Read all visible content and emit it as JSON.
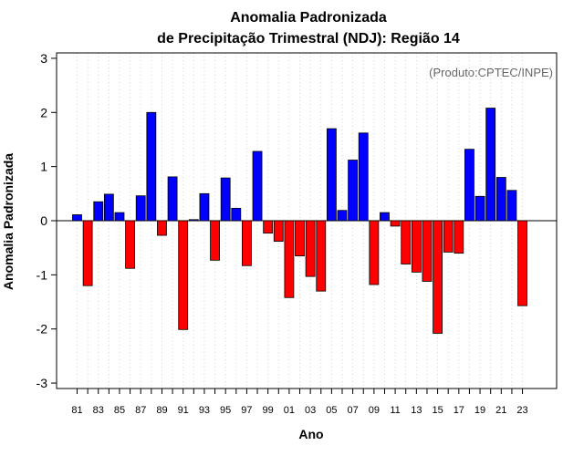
{
  "chart_data": {
    "type": "bar",
    "title": "Anomalia Padronizada",
    "subtitle": "de Precipitação Trimestral (NDJ): Região 14",
    "xlabel": "Ano",
    "ylabel": "Anomalia Padronizada",
    "credit": "(Produto:CPTEC/INPE)",
    "ylim": [
      -3.1,
      3.1
    ],
    "yticks": [
      -3,
      -2,
      -1,
      0,
      1,
      2,
      3
    ],
    "xtick_labels": [
      "81",
      "83",
      "85",
      "87",
      "89",
      "91",
      "93",
      "95",
      "97",
      "99",
      "01",
      "03",
      "05",
      "07",
      "09",
      "11",
      "13",
      "15",
      "17",
      "19",
      "21",
      "23"
    ],
    "grid": "vertical dotted",
    "categories": [
      "1981",
      "1982",
      "1983",
      "1984",
      "1985",
      "1986",
      "1987",
      "1988",
      "1989",
      "1990",
      "1991",
      "1992",
      "1993",
      "1994",
      "1995",
      "1996",
      "1997",
      "1998",
      "1999",
      "2000",
      "2001",
      "2002",
      "2003",
      "2004",
      "2005",
      "2006",
      "2007",
      "2008",
      "2009",
      "2010",
      "2011",
      "2012",
      "2013",
      "2014",
      "2015",
      "2016",
      "2017",
      "2018",
      "2019",
      "2020",
      "2021",
      "2022",
      "2023"
    ],
    "values": [
      0.11,
      -1.2,
      0.35,
      0.49,
      0.15,
      -0.88,
      0.46,
      2.0,
      -0.27,
      0.81,
      -2.01,
      0.02,
      0.5,
      -0.73,
      0.79,
      0.23,
      -0.83,
      1.28,
      -0.23,
      -0.38,
      -1.42,
      -0.65,
      -1.03,
      -1.3,
      1.7,
      0.19,
      1.12,
      1.62,
      -1.18,
      0.15,
      -0.1,
      -0.8,
      -0.95,
      -1.12,
      -2.08,
      -0.58,
      -0.6,
      1.32,
      0.45,
      2.08,
      0.8,
      0.56,
      -1.57
    ],
    "colors": {
      "positive": "#0000ff",
      "negative": "#ff0000",
      "outline": "#000000",
      "grid": "#d3d3d3"
    }
  }
}
